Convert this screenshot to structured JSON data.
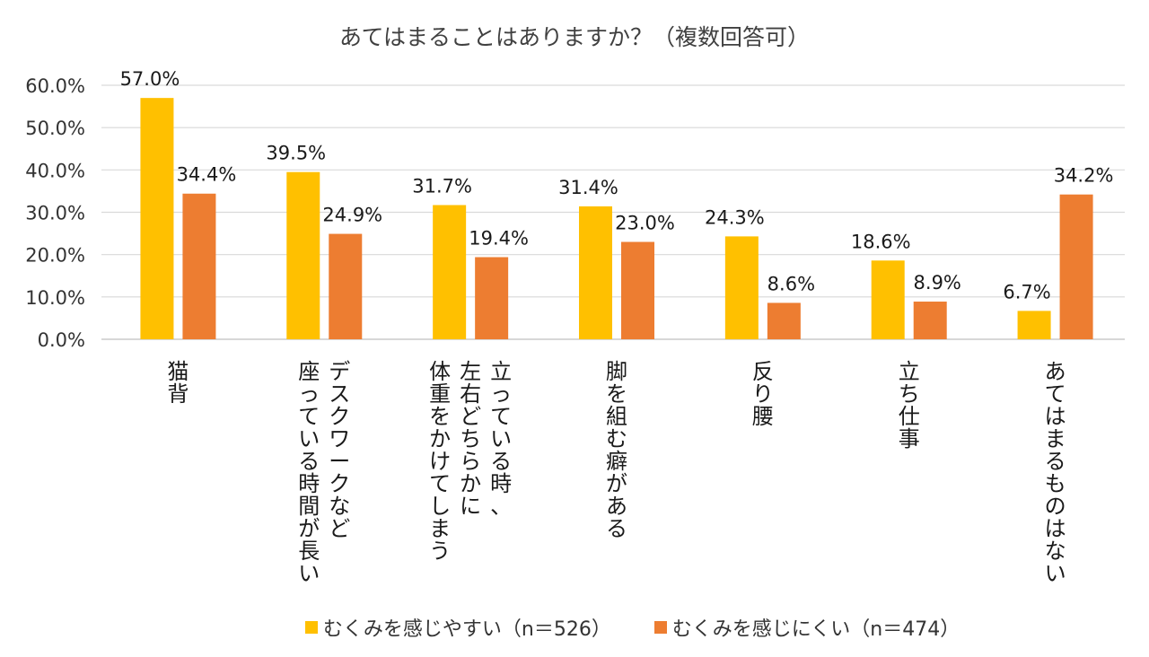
{
  "title": "あてはまることはありますか？（複数回答可）",
  "colors": {
    "series_a": "#FFC000",
    "series_b": "#ED7D31",
    "grid": "#D9D9D9",
    "axis": "#BFBFBF"
  },
  "chart_data": {
    "type": "bar",
    "title": "あてはまることはありますか？（複数回答可）",
    "categories": [
      [
        "猫背"
      ],
      [
        "座っている時間が長い",
        "デスクワークなど"
      ],
      [
        "体重をかけてしまう",
        "左右どちらかに",
        "立っている時、"
      ],
      [
        "脚を組む癖がある"
      ],
      [
        "反り腰"
      ],
      [
        "立ち仕事"
      ],
      [
        "あてはまるものはない"
      ]
    ],
    "series": [
      {
        "name": "むくみを感じやすい（n＝526）",
        "values": [
          57.0,
          39.5,
          31.7,
          31.4,
          24.3,
          18.6,
          6.7
        ]
      },
      {
        "name": "むくみを感じにくい（n＝474）",
        "values": [
          34.4,
          24.9,
          19.4,
          23.0,
          8.6,
          8.9,
          34.2
        ]
      }
    ],
    "yticks": [
      "0.0%",
      "10.0%",
      "20.0%",
      "30.0%",
      "40.0%",
      "50.0%",
      "60.0%"
    ],
    "ylim": [
      0,
      60
    ],
    "grid": true,
    "legend": "bottom"
  }
}
